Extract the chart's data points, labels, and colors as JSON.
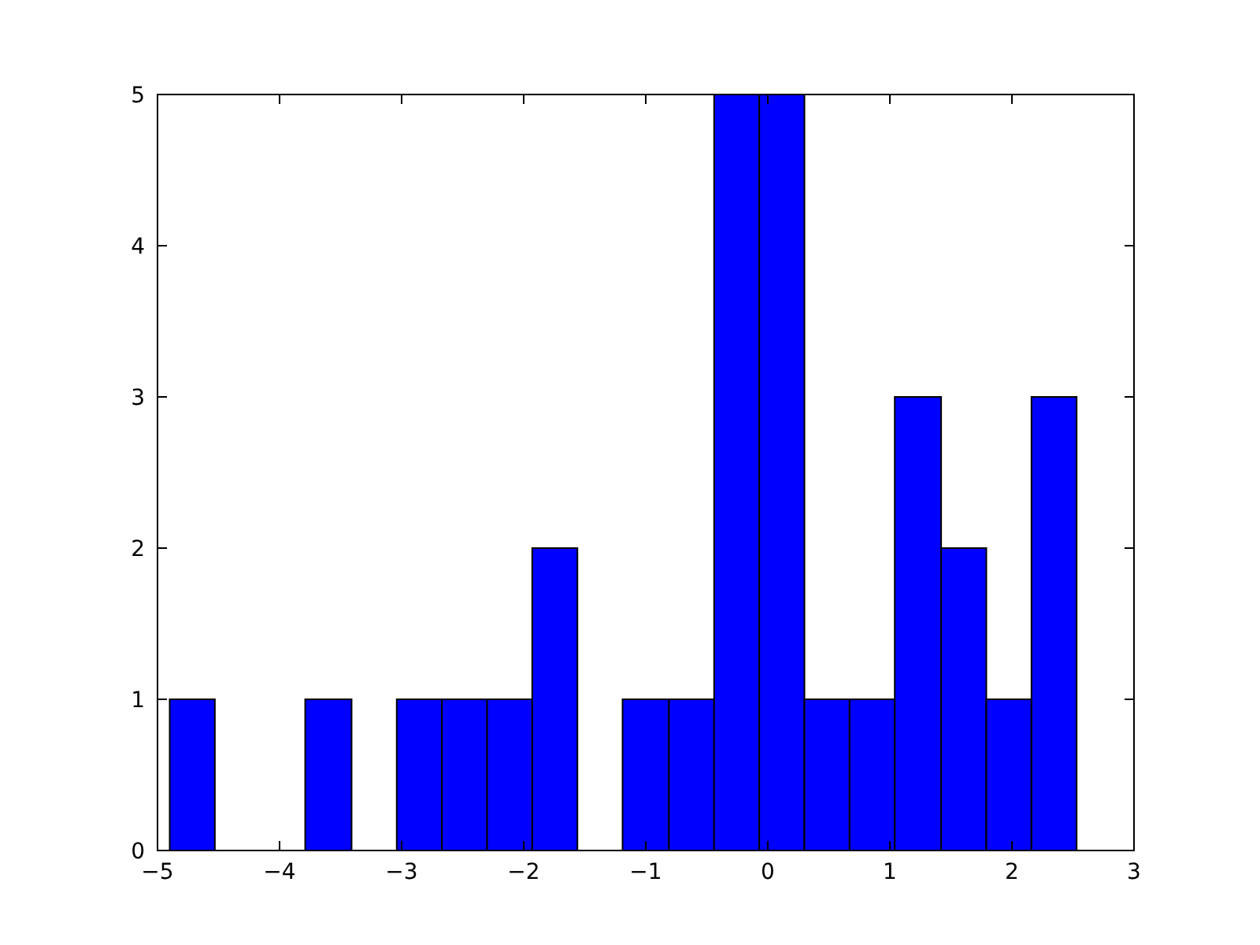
{
  "chart_data": {
    "type": "histogram",
    "bins": [
      -4.9,
      -4.53,
      -3.79,
      -3.41,
      -3.04,
      -2.67,
      -2.3,
      -1.93,
      -1.56,
      -1.19,
      -0.81,
      -0.44,
      -0.07,
      0.3,
      0.67,
      1.04,
      1.42,
      1.79,
      2.16,
      2.53
    ],
    "values": [
      1,
      0,
      1,
      0,
      1,
      1,
      1,
      2,
      0,
      1,
      1,
      5,
      5,
      1,
      1,
      3,
      2,
      1,
      3
    ],
    "color": "#0000ff",
    "xlim": [
      -5,
      3
    ],
    "xticks": [
      {
        "value": -5,
        "label": "−5"
      },
      {
        "value": -4,
        "label": "−4"
      },
      {
        "value": -3,
        "label": "−3"
      },
      {
        "value": -2,
        "label": "−2"
      },
      {
        "value": -1,
        "label": "−1"
      },
      0,
      1,
      2,
      3
    ],
    "ylim": [
      0,
      5
    ],
    "yticks": [
      0,
      1,
      2,
      3,
      4,
      5
    ]
  }
}
